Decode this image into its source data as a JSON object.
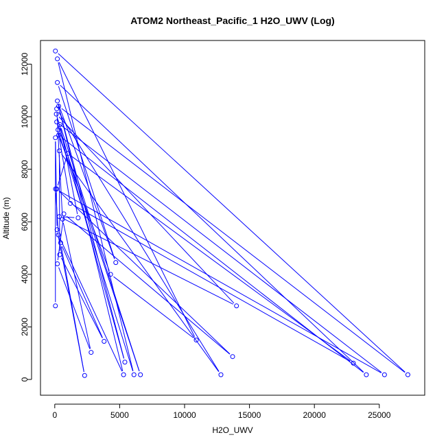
{
  "chart_data": {
    "type": "line",
    "title": "ATOM2 Northeast_Pacific_1 H2O_UWV (Log)",
    "xlabel": "H2O_UWV",
    "ylabel": "Altitude (m)",
    "xlim": [
      -1100,
      28500
    ],
    "ylim": [
      -600,
      12900
    ],
    "xticks": [
      0,
      5000,
      10000,
      15000,
      20000,
      25000
    ],
    "xtick_labels": [
      "0",
      "5000",
      "10000",
      "15000",
      "20000",
      "25000"
    ],
    "yticks": [
      0,
      2000,
      4000,
      6000,
      8000,
      10000,
      12000
    ],
    "ytick_labels": [
      "0",
      "2000",
      "4000",
      "6000",
      "8000",
      "10000",
      "12000"
    ],
    "grid": false,
    "series": [
      {
        "color": "#0000ff",
        "marker": "open-circle",
        "points": [
          [
            50,
            12500
          ],
          [
            27200,
            180
          ],
          [
            300,
            10400
          ],
          [
            5400,
            660
          ],
          [
            120,
            10100
          ],
          [
            14000,
            2800
          ],
          [
            350,
            6200
          ],
          [
            1800,
            6150
          ],
          [
            400,
            9700
          ],
          [
            6600,
            180
          ],
          [
            150,
            9800
          ],
          [
            25400,
            180
          ],
          [
            60,
            7250
          ],
          [
            280,
            5500
          ],
          [
            5300,
            180
          ],
          [
            200,
            10600
          ],
          [
            4700,
            4450
          ],
          [
            200,
            11300
          ],
          [
            24000,
            180
          ],
          [
            300,
            9300
          ],
          [
            4300,
            4000
          ],
          [
            10900,
            1500
          ],
          [
            200,
            12200
          ],
          [
            6100,
            180
          ],
          [
            250,
            9500
          ],
          [
            1200,
            6700
          ],
          [
            23000,
            620
          ],
          [
            1000,
            8600
          ],
          [
            150,
            7250
          ],
          [
            13700,
            870
          ],
          [
            700,
            6300
          ],
          [
            200,
            4400
          ],
          [
            2800,
            1030
          ],
          [
            600,
            6100
          ],
          [
            150,
            10300
          ],
          [
            12800,
            180
          ],
          [
            350,
            8700
          ],
          [
            380,
            4750
          ],
          [
            3800,
            1450
          ],
          [
            450,
            5200
          ],
          [
            2300,
            150
          ],
          [
            180,
            5700
          ],
          [
            50,
            9200
          ],
          [
            50,
            2800
          ]
        ]
      }
    ]
  }
}
